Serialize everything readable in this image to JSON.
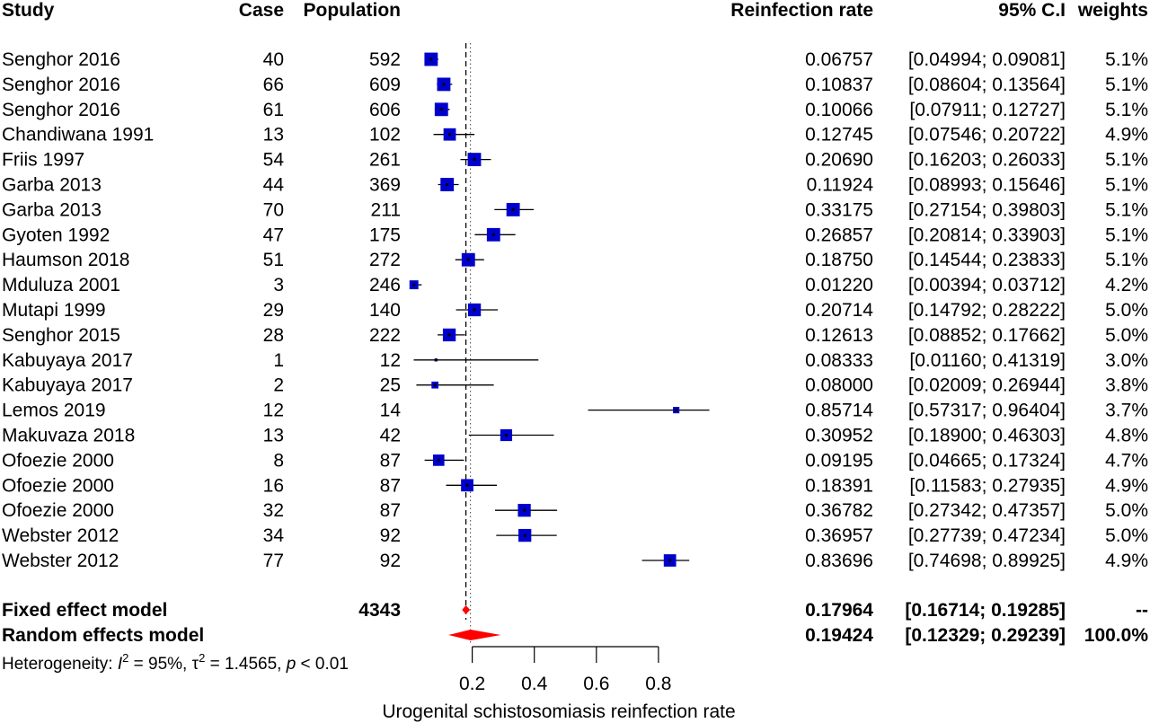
{
  "headers": {
    "study": "Study",
    "case": "Case",
    "population": "Population",
    "rate": "Reinfection rate",
    "ci": "95% C.I",
    "weights": "weights"
  },
  "heterogeneity": {
    "prefix": "Heterogeneity: ",
    "i2_symbol": "I",
    "i2_sup": "2",
    "i2_value": " = 95%, ",
    "tau_symbol": "τ",
    "tau_sup": "2",
    "tau_value": " = 1.4565, ",
    "p_symbol": "p",
    "p_value": " < 0.01"
  },
  "chart_data": {
    "type": "forest",
    "xlabel": "Urogenital schistosomiasis reinfection rate",
    "xticks": [
      0.2,
      0.4,
      0.6,
      0.8
    ],
    "tick_labels": [
      "0.2",
      "0.4",
      "0.6",
      "0.8"
    ],
    "x_range": [
      0.2,
      0.8
    ],
    "colors": {
      "box": "#0000cc",
      "line": "#000000",
      "diamond": "#ff0000"
    },
    "studies": [
      {
        "study": "Senghor 2016",
        "case": "40",
        "population": "592",
        "rate": "0.06757",
        "ci": "[0.04994; 0.09081]",
        "weight": "5.1%",
        "est": 0.06757,
        "lo": 0.04994,
        "hi": 0.09081,
        "w": 5.1
      },
      {
        "study": "Senghor 2016",
        "case": "66",
        "population": "609",
        "rate": "0.10837",
        "ci": "[0.08604; 0.13564]",
        "weight": "5.1%",
        "est": 0.10837,
        "lo": 0.08604,
        "hi": 0.13564,
        "w": 5.1
      },
      {
        "study": "Senghor 2016",
        "case": "61",
        "population": "606",
        "rate": "0.10066",
        "ci": "[0.07911; 0.12727]",
        "weight": "5.1%",
        "est": 0.10066,
        "lo": 0.07911,
        "hi": 0.12727,
        "w": 5.1
      },
      {
        "study": "Chandiwana 1991",
        "case": "13",
        "population": "102",
        "rate": "0.12745",
        "ci": "[0.07546; 0.20722]",
        "weight": "4.9%",
        "est": 0.12745,
        "lo": 0.07546,
        "hi": 0.20722,
        "w": 4.9
      },
      {
        "study": "Friis 1997",
        "case": "54",
        "population": "261",
        "rate": "0.20690",
        "ci": "[0.16203; 0.26033]",
        "weight": "5.1%",
        "est": 0.2069,
        "lo": 0.16203,
        "hi": 0.26033,
        "w": 5.1
      },
      {
        "study": "Garba 2013",
        "case": "44",
        "population": "369",
        "rate": "0.11924",
        "ci": "[0.08993; 0.15646]",
        "weight": "5.1%",
        "est": 0.11924,
        "lo": 0.08993,
        "hi": 0.15646,
        "w": 5.1
      },
      {
        "study": "Garba 2013",
        "case": "70",
        "population": "211",
        "rate": "0.33175",
        "ci": "[0.27154; 0.39803]",
        "weight": "5.1%",
        "est": 0.33175,
        "lo": 0.27154,
        "hi": 0.39803,
        "w": 5.1
      },
      {
        "study": "Gyoten 1992",
        "case": "47",
        "population": "175",
        "rate": "0.26857",
        "ci": "[0.20814; 0.33903]",
        "weight": "5.1%",
        "est": 0.26857,
        "lo": 0.20814,
        "hi": 0.33903,
        "w": 5.1
      },
      {
        "study": "Haumson 2018",
        "case": "51",
        "population": "272",
        "rate": "0.18750",
        "ci": "[0.14544; 0.23833]",
        "weight": "5.1%",
        "est": 0.1875,
        "lo": 0.14544,
        "hi": 0.23833,
        "w": 5.1
      },
      {
        "study": "Mduluza 2001",
        "case": "3",
        "population": "246",
        "rate": "0.01220",
        "ci": "[0.00394; 0.03712]",
        "weight": "4.2%",
        "est": 0.0122,
        "lo": 0.00394,
        "hi": 0.03712,
        "w": 4.2
      },
      {
        "study": "Mutapi 1999",
        "case": "29",
        "population": "140",
        "rate": "0.20714",
        "ci": "[0.14792; 0.28222]",
        "weight": "5.0%",
        "est": 0.20714,
        "lo": 0.14792,
        "hi": 0.28222,
        "w": 5.0
      },
      {
        "study": "Senghor 2015",
        "case": "28",
        "population": "222",
        "rate": "0.12613",
        "ci": "[0.08852; 0.17662]",
        "weight": "5.0%",
        "est": 0.12613,
        "lo": 0.08852,
        "hi": 0.17662,
        "w": 5.0
      },
      {
        "study": "Kabuyaya 2017",
        "case": "1",
        "population": "12",
        "rate": "0.08333",
        "ci": "[0.01160; 0.41319]",
        "weight": "3.0%",
        "est": 0.08333,
        "lo": 0.0116,
        "hi": 0.41319,
        "w": 3.0
      },
      {
        "study": "Kabuyaya 2017",
        "case": "2",
        "population": "25",
        "rate": "0.08000",
        "ci": "[0.02009; 0.26944]",
        "weight": "3.8%",
        "est": 0.08,
        "lo": 0.02009,
        "hi": 0.26944,
        "w": 3.8
      },
      {
        "study": "Lemos 2019",
        "case": "12",
        "population": "14",
        "rate": "0.85714",
        "ci": "[0.57317; 0.96404]",
        "weight": "3.7%",
        "est": 0.85714,
        "lo": 0.57317,
        "hi": 0.96404,
        "w": 3.7
      },
      {
        "study": "Makuvaza 2018",
        "case": "13",
        "population": "42",
        "rate": "0.30952",
        "ci": "[0.18900; 0.46303]",
        "weight": "4.8%",
        "est": 0.30952,
        "lo": 0.189,
        "hi": 0.46303,
        "w": 4.8
      },
      {
        "study": "Ofoezie 2000",
        "case": "8",
        "population": "87",
        "rate": "0.09195",
        "ci": "[0.04665; 0.17324]",
        "weight": "4.7%",
        "est": 0.09195,
        "lo": 0.04665,
        "hi": 0.17324,
        "w": 4.7
      },
      {
        "study": "Ofoezie 2000",
        "case": "16",
        "population": "87",
        "rate": "0.18391",
        "ci": "[0.11583; 0.27935]",
        "weight": "4.9%",
        "est": 0.18391,
        "lo": 0.11583,
        "hi": 0.27935,
        "w": 4.9
      },
      {
        "study": "Ofoezie 2000",
        "case": "32",
        "population": "87",
        "rate": "0.36782",
        "ci": "[0.27342; 0.47357]",
        "weight": "5.0%",
        "est": 0.36782,
        "lo": 0.27342,
        "hi": 0.47357,
        "w": 5.0
      },
      {
        "study": "Webster 2012",
        "case": "34",
        "population": "92",
        "rate": "0.36957",
        "ci": "[0.27739; 0.47234]",
        "weight": "5.0%",
        "est": 0.36957,
        "lo": 0.27739,
        "hi": 0.47234,
        "w": 5.0
      },
      {
        "study": "Webster 2012",
        "case": "77",
        "population": "92",
        "rate": "0.83696",
        "ci": "[0.74698; 0.89925]",
        "weight": "4.9%",
        "est": 0.83696,
        "lo": 0.74698,
        "hi": 0.89925,
        "w": 4.9
      }
    ],
    "summary": [
      {
        "study": "Fixed effect model",
        "population": "4343",
        "rate": "0.17964",
        "ci": "[0.16714; 0.19285]",
        "weight": "--",
        "est": 0.17964,
        "lo": 0.16714,
        "hi": 0.19285
      },
      {
        "study": "Random effects model",
        "population": "",
        "rate": "0.19424",
        "ci": "[0.12329; 0.29239]",
        "weight": "100.0%",
        "est": 0.19424,
        "lo": 0.12329,
        "hi": 0.29239
      }
    ],
    "reference_lines": {
      "fixed": 0.17964,
      "random": 0.19424
    }
  }
}
